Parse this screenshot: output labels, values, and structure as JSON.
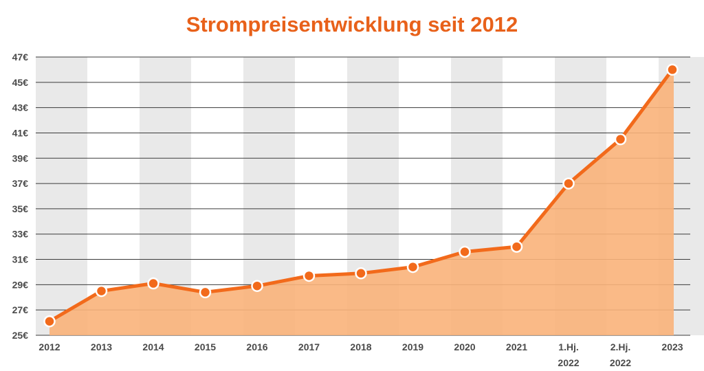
{
  "chart_data": {
    "type": "area",
    "title": "Strompreisentwicklung seit 2012",
    "categories": [
      "2012",
      "2013",
      "2014",
      "2015",
      "2016",
      "2017",
      "2018",
      "2019",
      "2020",
      "2021",
      "1.Hj. 2022",
      "2.Hj. 2022",
      "2023"
    ],
    "values": [
      26.1,
      28.5,
      29.1,
      28.4,
      28.9,
      29.7,
      29.9,
      30.4,
      31.6,
      32.0,
      37.0,
      40.5,
      46.0
    ],
    "y_tick_labels": [
      "25€",
      "27€",
      "29€",
      "31€",
      "33€",
      "35€",
      "37€",
      "39€",
      "41€",
      "43€",
      "45€",
      "47€"
    ],
    "xlabel": "",
    "ylabel": "",
    "ylim": [
      25,
      47
    ],
    "grid": true,
    "legend": "none",
    "colors": {
      "title": "#e8611a",
      "line": "#f26a1b",
      "area": "#f9b27a",
      "marker_fill": "#f26a1b",
      "marker_stroke": "#ffffff",
      "band": "#e9e9e9",
      "gridline": "#3a3a3a"
    }
  }
}
